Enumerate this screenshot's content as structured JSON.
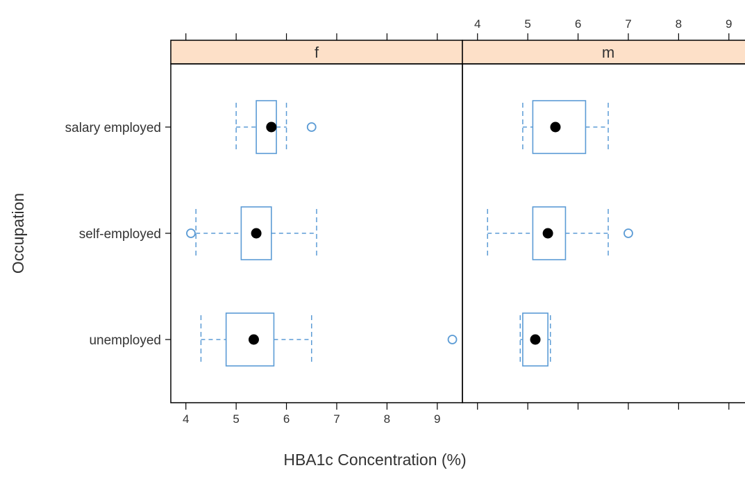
{
  "chart_data": {
    "type": "boxplot",
    "xlabel": "HBA1c Concentration (%)",
    "ylabel": "Occupation",
    "xlim": [
      3.7,
      9.5
    ],
    "x_ticks": [
      4,
      5,
      6,
      7,
      8,
      9
    ],
    "categories": [
      "salary employed",
      "self-employed",
      "unemployed"
    ],
    "grid": false,
    "colors": {
      "box": "#5b9bd5",
      "median": "#000000",
      "strip": "#fde0c8",
      "frame": "#000000"
    },
    "panels": [
      {
        "label": "f",
        "boxes": [
          {
            "category": "salary employed",
            "whisker_low": 5.0,
            "q1": 5.4,
            "median": 5.7,
            "q3": 5.8,
            "whisker_high": 6.0,
            "outliers": [
              6.5
            ]
          },
          {
            "category": "self-employed",
            "whisker_low": 4.2,
            "q1": 5.1,
            "median": 5.4,
            "q3": 5.7,
            "whisker_high": 6.6,
            "outliers": [
              4.1
            ]
          },
          {
            "category": "unemployed",
            "whisker_low": 4.3,
            "q1": 4.8,
            "median": 5.35,
            "q3": 5.75,
            "whisker_high": 6.5,
            "outliers": [
              9.3
            ]
          }
        ]
      },
      {
        "label": "m",
        "boxes": [
          {
            "category": "salary employed",
            "whisker_low": 4.9,
            "q1": 5.1,
            "median": 5.55,
            "q3": 6.15,
            "whisker_high": 6.6,
            "outliers": []
          },
          {
            "category": "self-employed",
            "whisker_low": 4.2,
            "q1": 5.1,
            "median": 5.4,
            "q3": 5.75,
            "whisker_high": 6.6,
            "outliers": [
              7.0
            ]
          },
          {
            "category": "unemployed",
            "whisker_low": 4.85,
            "q1": 4.9,
            "median": 5.15,
            "q3": 5.4,
            "whisker_high": 5.45,
            "outliers": []
          }
        ]
      }
    ]
  }
}
